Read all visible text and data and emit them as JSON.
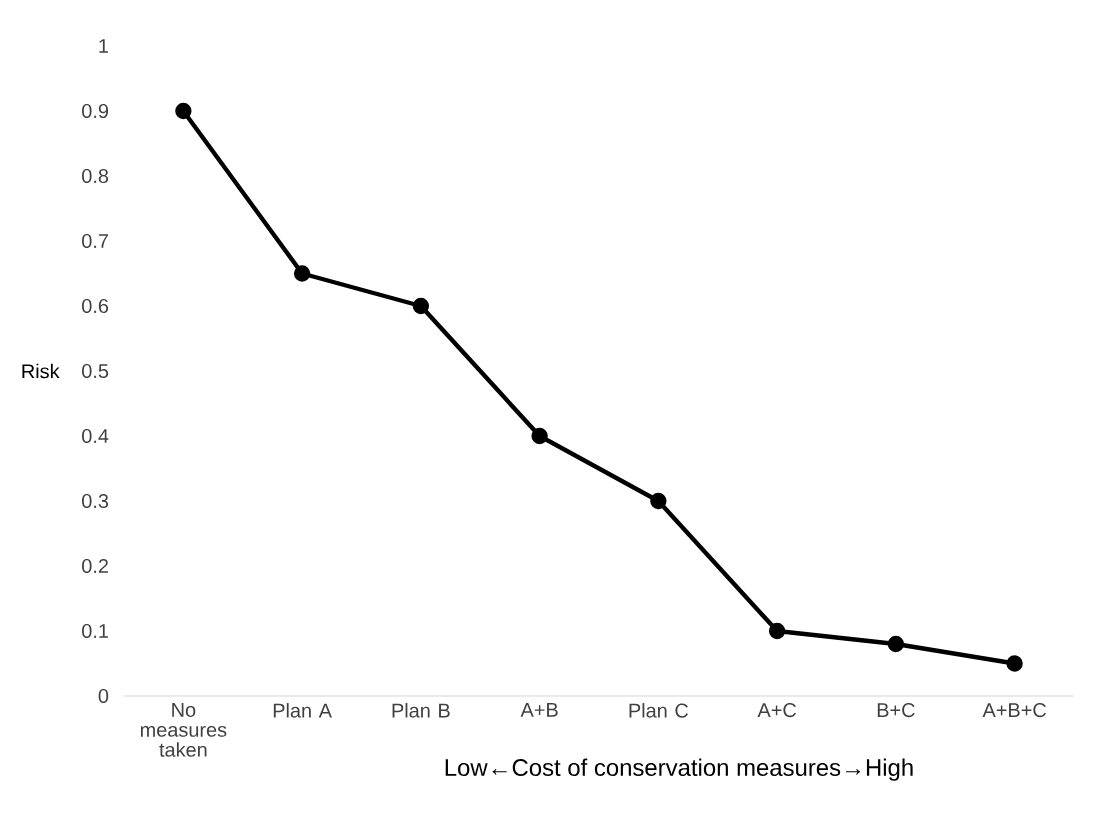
{
  "chart_data": {
    "type": "line",
    "xlabel": "Low←Cost of conservation measures→High",
    "ylabel": "Risk",
    "categories": [
      "No measures taken",
      "Plan A",
      "Plan B",
      "A+B",
      "Plan C",
      "A+C",
      "B+C",
      "A+B+C"
    ],
    "series": [
      {
        "color": "#000000",
        "values": [
          0.9,
          0.65,
          0.6,
          0.4,
          0.3,
          0.1,
          0.08,
          0.05
        ]
      }
    ],
    "ylim": [
      0,
      1
    ],
    "yticks": [
      0,
      0.1,
      0.2,
      0.3,
      0.4,
      0.5,
      0.6,
      0.7,
      0.8,
      0.9,
      1
    ],
    "marker": "circle",
    "line_style": "solid",
    "grid": false
  }
}
